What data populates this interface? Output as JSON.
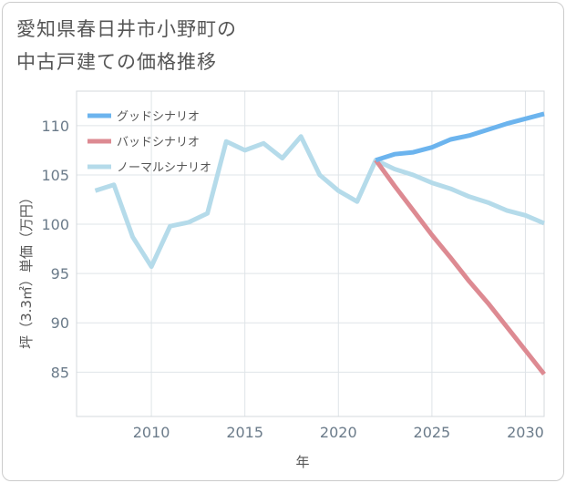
{
  "title_lines": [
    "愛知県春日井市小野町の",
    "中古戸建ての価格推移"
  ],
  "chart_data": {
    "type": "line",
    "title": "愛知県春日井市小野町の中古戸建ての価格推移",
    "xlabel": "年",
    "ylabel": "坪（3.3㎡）単価（万円）",
    "xlim": [
      2006,
      2031
    ],
    "ylim": [
      80.5,
      113.5
    ],
    "xticks": [
      2010,
      2015,
      2020,
      2025,
      2030
    ],
    "yticks": [
      85,
      90,
      95,
      100,
      105,
      110
    ],
    "grid": true,
    "legend_position": "top-left",
    "series": [
      {
        "name": "グッドシナリオ",
        "color": "#6cb4ee",
        "x": [
          2022,
          2023,
          2024,
          2025,
          2026,
          2027,
          2028,
          2029,
          2030,
          2031
        ],
        "values": [
          106.5,
          107.1,
          107.3,
          107.8,
          108.6,
          109.0,
          109.6,
          110.2,
          110.7,
          111.2
        ]
      },
      {
        "name": "バッドシナリオ",
        "color": "#dd8a92",
        "x": [
          2022,
          2023,
          2024,
          2025,
          2026,
          2027,
          2028,
          2029,
          2030,
          2031
        ],
        "values": [
          106.5,
          103.9,
          101.4,
          98.9,
          96.6,
          94.2,
          92.0,
          89.6,
          87.2,
          84.8
        ]
      },
      {
        "name": "ノーマルシナリオ",
        "color": "#b5dbea",
        "x": [
          2007,
          2008,
          2009,
          2010,
          2011,
          2012,
          2013,
          2014,
          2015,
          2016,
          2017,
          2018,
          2019,
          2020,
          2021,
          2022,
          2023,
          2024,
          2025,
          2026,
          2027,
          2028,
          2029,
          2030,
          2031
        ],
        "values": [
          103.4,
          104.0,
          98.7,
          95.7,
          99.8,
          100.2,
          101.1,
          108.4,
          107.5,
          108.2,
          106.7,
          108.9,
          105.0,
          103.4,
          102.3,
          106.5,
          105.6,
          105.0,
          104.2,
          103.6,
          102.8,
          102.2,
          101.4,
          100.9,
          100.1
        ]
      }
    ]
  }
}
